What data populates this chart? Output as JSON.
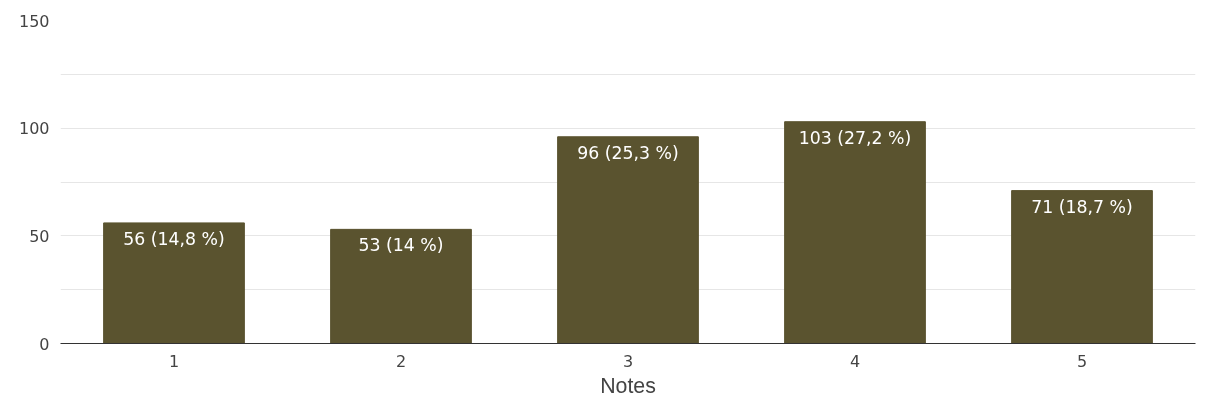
{
  "chart_data": {
    "type": "bar",
    "xlabel": "Notes",
    "categories": [
      "1",
      "2",
      "3",
      "4",
      "5"
    ],
    "values": [
      56,
      53,
      96,
      103,
      71
    ],
    "value_labels": [
      "56 (14,8 %)",
      "53 (14 %)",
      "96 (25,3 %)",
      "103 (27,2 %)",
      "71 (18,7 %)"
    ],
    "color": "#5a532f",
    "ylim": [
      0,
      150
    ],
    "yticks": [
      0,
      {
        "value": 25,
        "label": null
      },
      50,
      {
        "value": 75,
        "label": null
      },
      100,
      {
        "value": 125,
        "label": null
      },
      150
    ],
    "grid": "y"
  }
}
